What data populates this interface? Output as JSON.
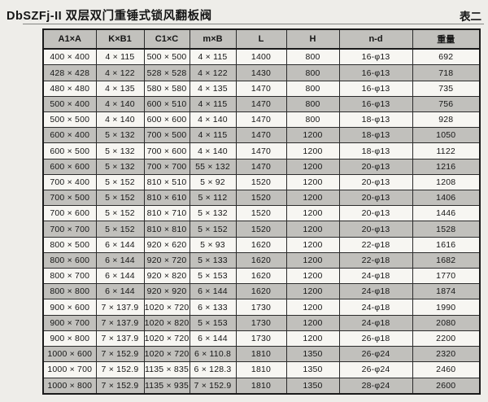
{
  "page": {
    "title": "DbSZFj-II 双层双门重锤式锁风翻板阀",
    "table_label": "表二"
  },
  "table": {
    "columns": [
      "A1×A",
      "K×B1",
      "C1×C",
      "m×B",
      "L",
      "H",
      "n-d",
      "重量"
    ],
    "rows": [
      [
        "400 × 400",
        "4 × 115",
        "500 × 500",
        "4 × 115",
        "1400",
        "800",
        "16-φ13",
        "692"
      ],
      [
        "428 × 428",
        "4 × 122",
        "528 × 528",
        "4 × 122",
        "1430",
        "800",
        "16-φ13",
        "718"
      ],
      [
        "480 × 480",
        "4 × 135",
        "580 × 580",
        "4 × 135",
        "1470",
        "800",
        "16-φ13",
        "735"
      ],
      [
        "500 × 400",
        "4 × 140",
        "600 × 510",
        "4 × 115",
        "1470",
        "800",
        "16-φ13",
        "756"
      ],
      [
        "500 × 500",
        "4 × 140",
        "600 × 600",
        "4 × 140",
        "1470",
        "800",
        "18-φ13",
        "928"
      ],
      [
        "600 × 400",
        "5 × 132",
        "700 × 500",
        "4 × 115",
        "1470",
        "1200",
        "18-φ13",
        "1050"
      ],
      [
        "600 × 500",
        "5 × 132",
        "700 × 600",
        "4 × 140",
        "1470",
        "1200",
        "18-φ13",
        "1122"
      ],
      [
        "600 × 600",
        "5 × 132",
        "700 × 700",
        "55 × 132",
        "1470",
        "1200",
        "20-φ13",
        "1216"
      ],
      [
        "700 × 400",
        "5 × 152",
        "810 × 510",
        "5 × 92",
        "1520",
        "1200",
        "20-φ13",
        "1208"
      ],
      [
        "700 × 500",
        "5 × 152",
        "810 × 610",
        "5 × 112",
        "1520",
        "1200",
        "20-φ13",
        "1406"
      ],
      [
        "700 × 600",
        "5 × 152",
        "810 × 710",
        "5 × 132",
        "1520",
        "1200",
        "20-φ13",
        "1446"
      ],
      [
        "700 × 700",
        "5 × 152",
        "810 × 810",
        "5 × 152",
        "1520",
        "1200",
        "20-φ13",
        "1528"
      ],
      [
        "800 × 500",
        "6 × 144",
        "920 × 620",
        "5 × 93",
        "1620",
        "1200",
        "22-φ18",
        "1616"
      ],
      [
        "800 × 600",
        "6 × 144",
        "920 × 720",
        "5 × 133",
        "1620",
        "1200",
        "22-φ18",
        "1682"
      ],
      [
        "800 × 700",
        "6 × 144",
        "920 × 820",
        "5 × 153",
        "1620",
        "1200",
        "24-φ18",
        "1770"
      ],
      [
        "800 × 800",
        "6 × 144",
        "920 × 920",
        "6 × 144",
        "1620",
        "1200",
        "24-φ18",
        "1874"
      ],
      [
        "900 × 600",
        "7 × 137.9",
        "1020 × 720",
        "6 × 133",
        "1730",
        "1200",
        "24-φ18",
        "1990"
      ],
      [
        "900 × 700",
        "7 × 137.9",
        "1020 × 820",
        "5 × 153",
        "1730",
        "1200",
        "24-φ18",
        "2080"
      ],
      [
        "900 × 800",
        "7 × 137.9",
        "1020 × 720",
        "6 × 144",
        "1730",
        "1200",
        "26-φ18",
        "2200"
      ],
      [
        "1000 × 600",
        "7 × 152.9",
        "1020 × 720",
        "6 × 110.8",
        "1810",
        "1350",
        "26-φ24",
        "2320"
      ],
      [
        "1000 × 700",
        "7 × 152.9",
        "1135 × 835",
        "6 × 128.3",
        "1810",
        "1350",
        "26-φ24",
        "2460"
      ],
      [
        "1000 × 800",
        "7 × 152.9",
        "1135 × 935",
        "7 × 152.9",
        "1810",
        "1350",
        "28-φ24",
        "2600"
      ]
    ]
  },
  "colors": {
    "paper": "#eeede9",
    "row_light": "#f7f6f2",
    "row_shaded": "#c1c0bc",
    "header_bg": "#c2c1bd",
    "border": "#1a1a1a",
    "text": "#161616"
  }
}
